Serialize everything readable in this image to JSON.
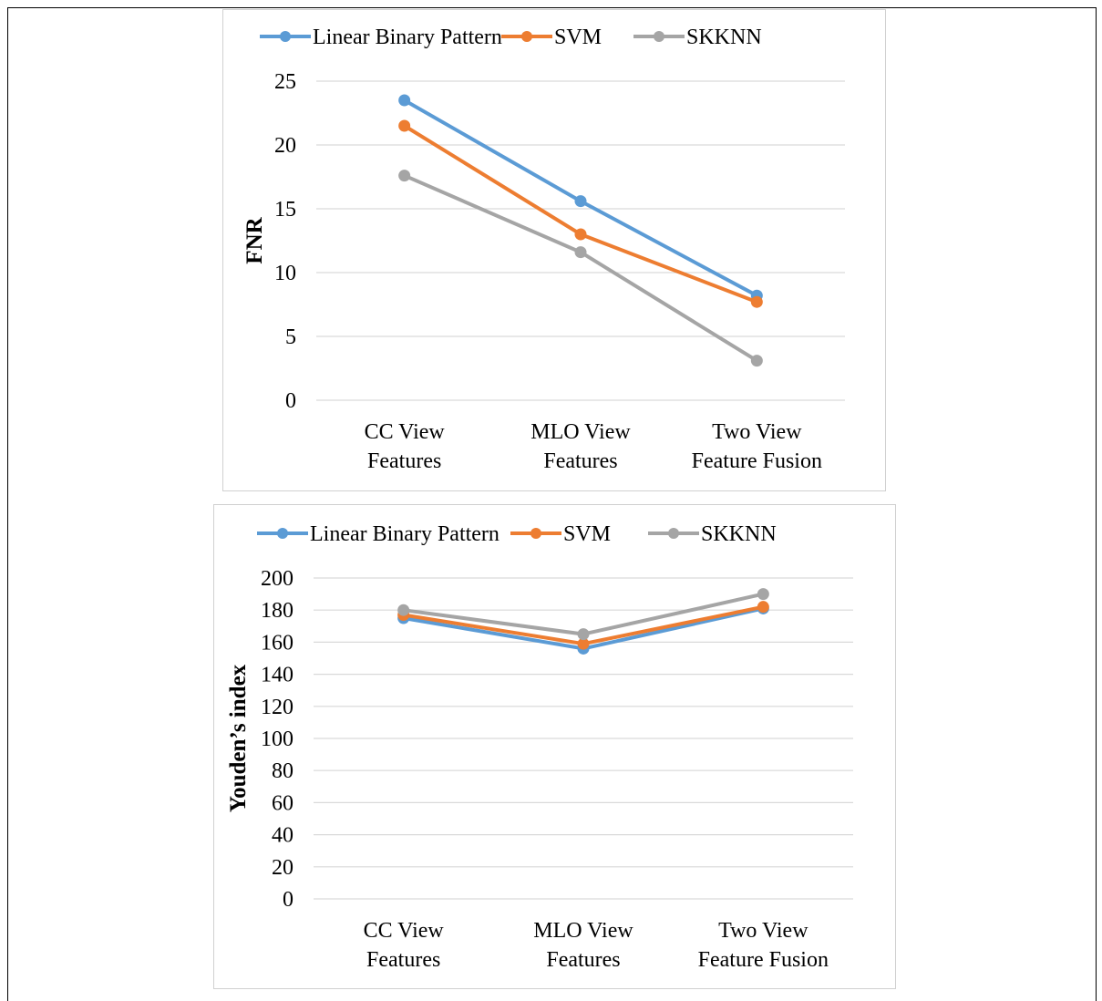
{
  "colors": {
    "Linear Binary Pattern": "#5b9bd5",
    "SVM": "#ed7d31",
    "SKKNN": "#a5a5a5",
    "grid": "#d9d9d9",
    "text": "#000000"
  },
  "chart_data": [
    {
      "type": "line",
      "categories": [
        [
          "CC View",
          "Features"
        ],
        [
          "MLO View",
          "Features"
        ],
        [
          "Two View",
          "Feature Fusion"
        ]
      ],
      "series": [
        {
          "name": "Linear Binary Pattern",
          "values": [
            23.5,
            15.6,
            8.2
          ]
        },
        {
          "name": "SVM",
          "values": [
            21.5,
            13.0,
            7.7
          ]
        },
        {
          "name": "SKKNN",
          "values": [
            17.6,
            11.6,
            3.1
          ]
        }
      ],
      "title": "",
      "xlabel": "",
      "ylabel": "FNR",
      "ylim": [
        0,
        25
      ],
      "yticks": [
        0,
        5,
        10,
        15,
        20,
        25
      ],
      "grid": true,
      "legend": "top"
    },
    {
      "type": "line",
      "categories": [
        [
          "CC View",
          "Features"
        ],
        [
          "MLO View",
          "Features"
        ],
        [
          "Two View",
          "Feature Fusion"
        ]
      ],
      "series": [
        {
          "name": "Linear Binary Pattern",
          "values": [
            175,
            156,
            181
          ]
        },
        {
          "name": "SVM",
          "values": [
            177,
            159,
            182
          ]
        },
        {
          "name": "SKKNN",
          "values": [
            180,
            165,
            190
          ]
        }
      ],
      "title": "",
      "xlabel": "",
      "ylabel": "Youden’s index",
      "ylim": [
        0,
        200
      ],
      "yticks": [
        0,
        20,
        40,
        60,
        80,
        100,
        120,
        140,
        160,
        180,
        200
      ],
      "grid": true,
      "legend": "top"
    }
  ]
}
